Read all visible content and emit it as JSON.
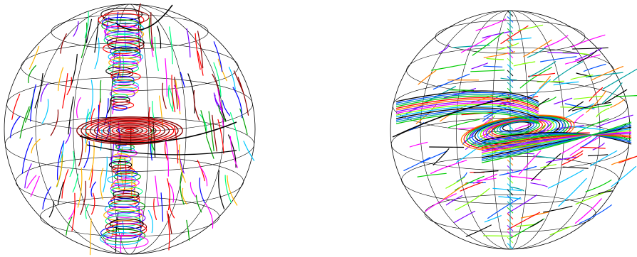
{
  "figure": {
    "panels": [
      {
        "id": "left-sphere",
        "theme": "vortex streamlines with vertical funnel core",
        "streamline_palette": [
          "#000000",
          "#8b0000",
          "#ff0000",
          "#0000ff",
          "#00a000",
          "#00c8ff",
          "#ff00ff",
          "#ffb400",
          "#7a00ff",
          "#00ff80"
        ],
        "grid_color": "#000000"
      },
      {
        "id": "right-sphere",
        "theme": "swirling streamlines with tilted flow and thin vertical tube",
        "streamline_palette": [
          "#000000",
          "#0050ff",
          "#00a0a0",
          "#00cc00",
          "#ff0000",
          "#ff8000",
          "#8000ff",
          "#ff00ff",
          "#80ff00",
          "#00c0ff"
        ],
        "grid_color": "#000000"
      }
    ]
  }
}
